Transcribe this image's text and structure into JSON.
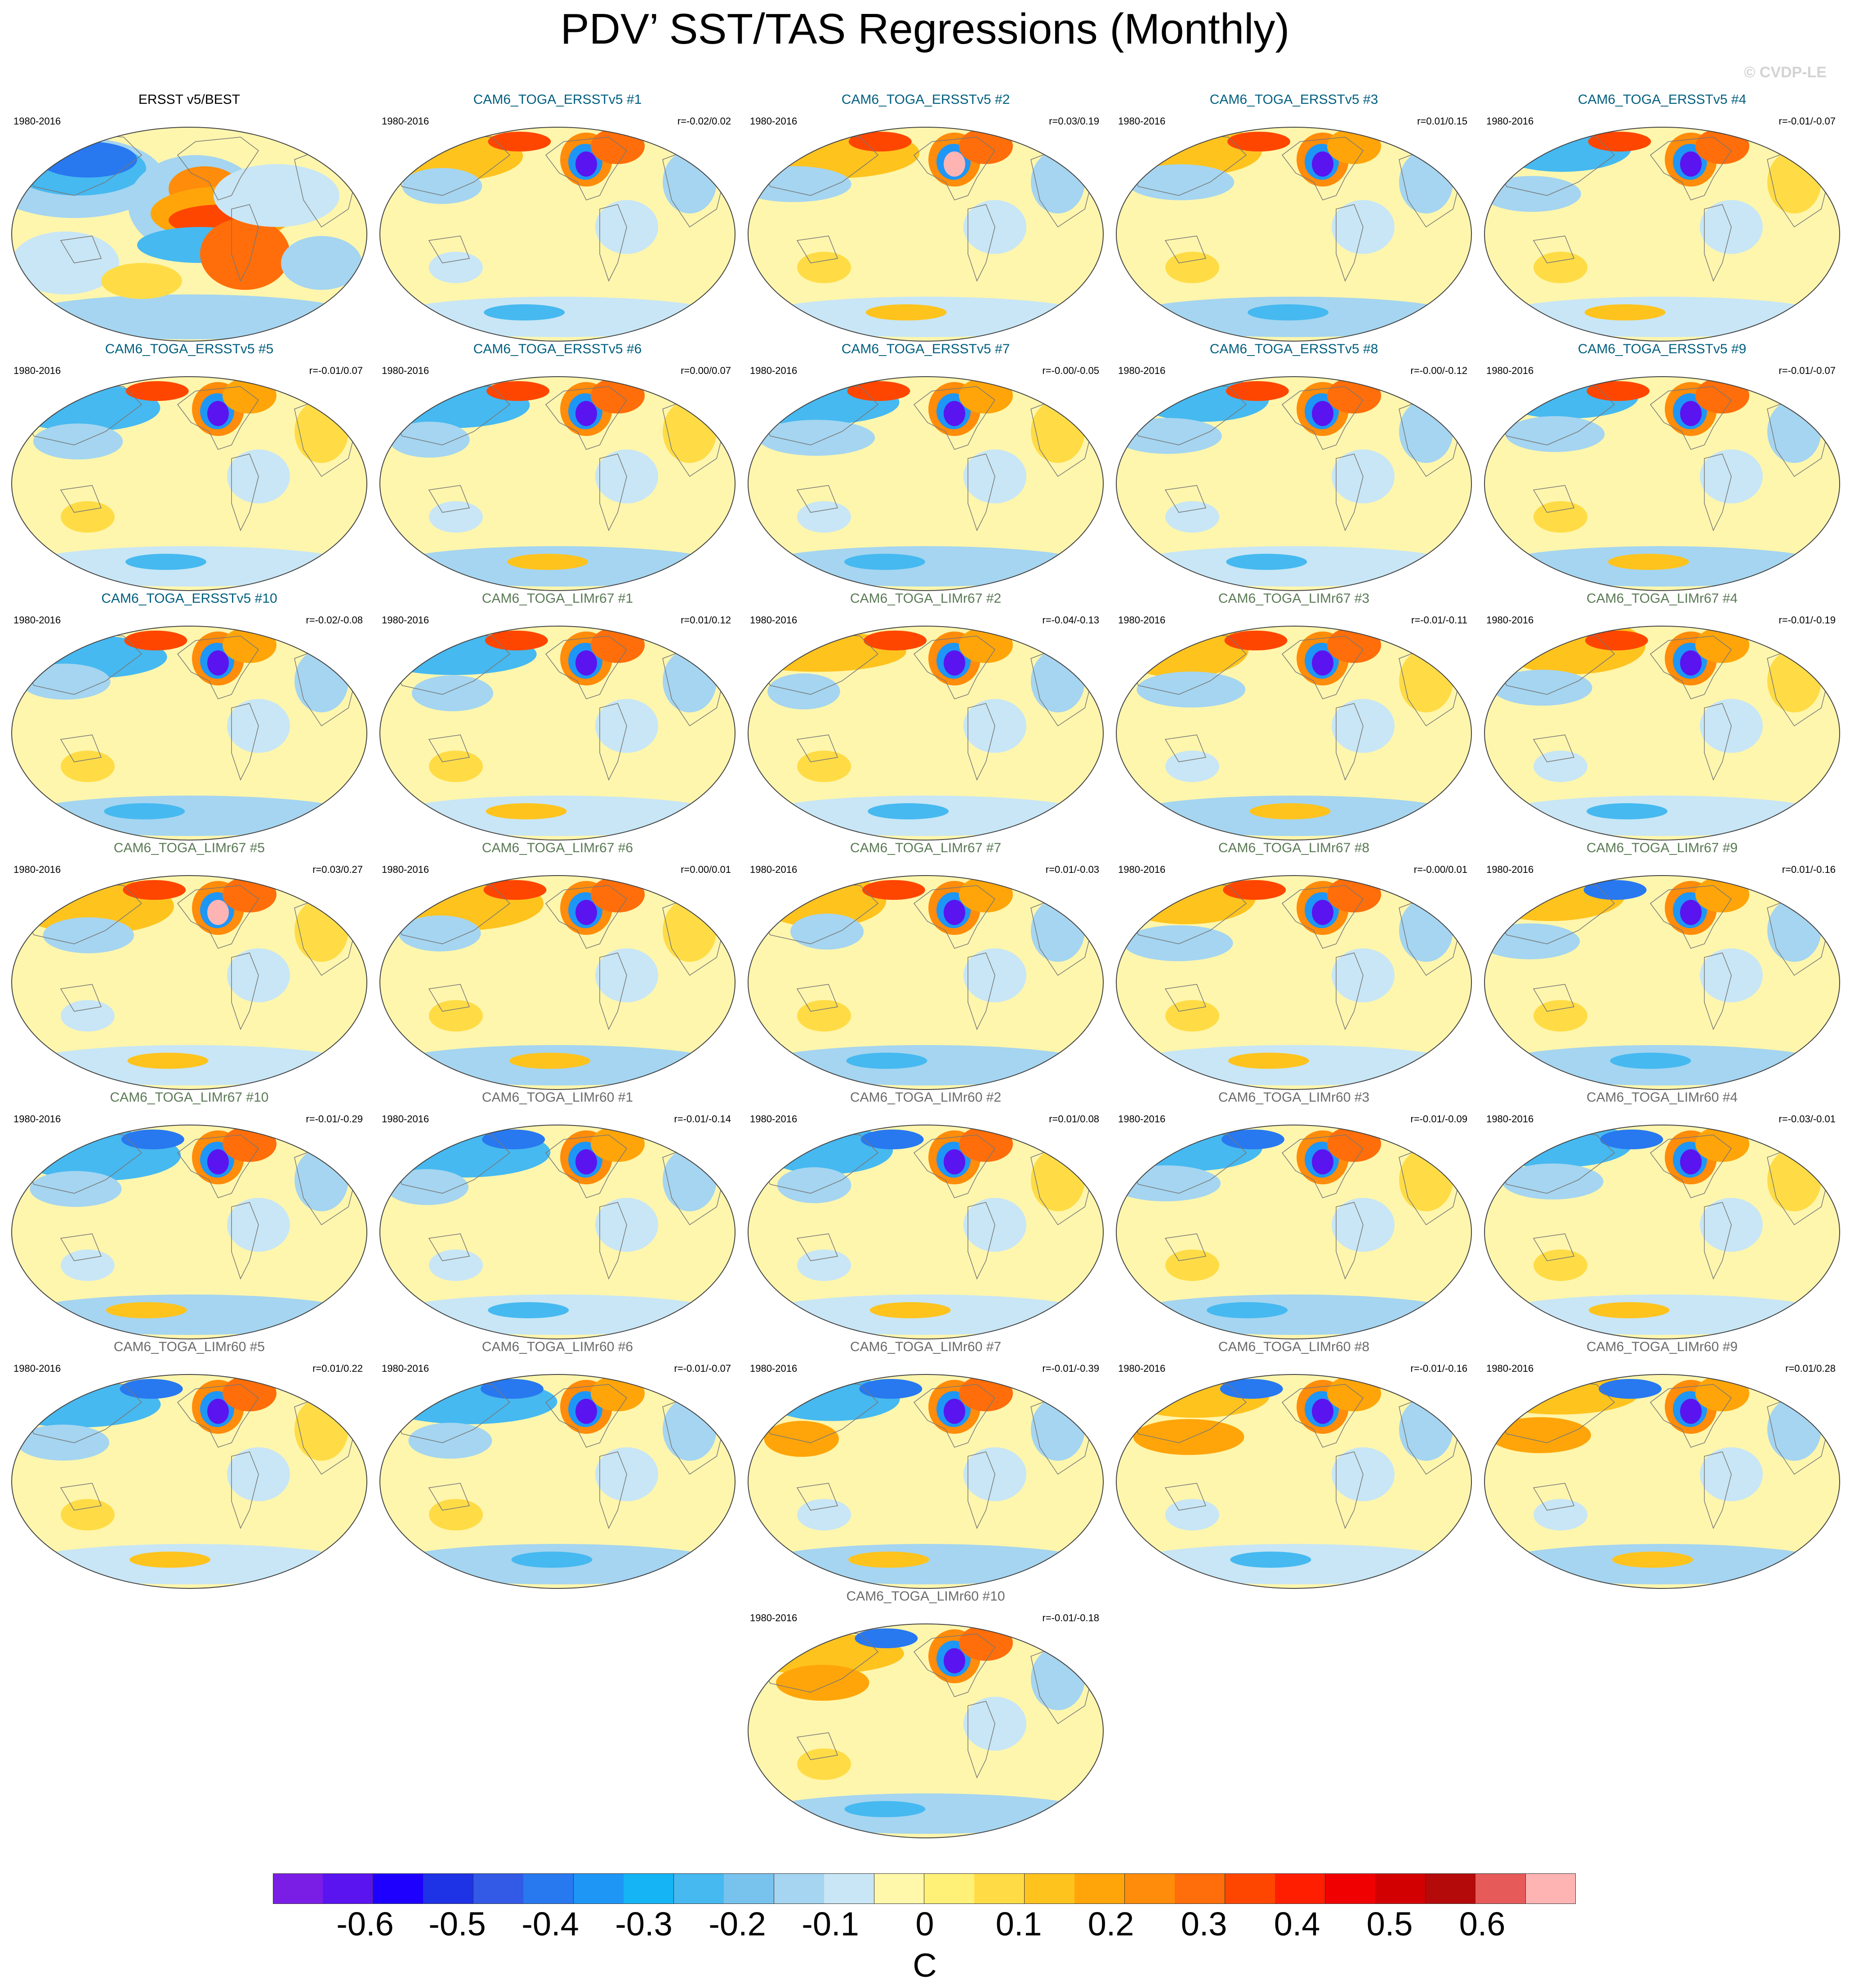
{
  "title": "PDV’ SST/TAS Regressions (Monthly)",
  "watermark": "© CVDP-LE",
  "colors": {
    "title_ersst": "#005f7f",
    "title_limr67": "#5a7a55",
    "title_limr60": "#6b6b6b",
    "ocean": "#fff6ad",
    "outline": "#777777"
  },
  "panels": [
    {
      "title": "ERSST v5/BEST",
      "period": "1980-2016",
      "corr": "",
      "group": "obs"
    },
    {
      "title": "CAM6_TOGA_ERSSTv5 #1",
      "period": "1980-2016",
      "corr": "r=-0.02/0.02",
      "group": "ersst"
    },
    {
      "title": "CAM6_TOGA_ERSSTv5 #2",
      "period": "1980-2016",
      "corr": "r=0.03/0.19",
      "group": "ersst"
    },
    {
      "title": "CAM6_TOGA_ERSSTv5 #3",
      "period": "1980-2016",
      "corr": "r=0.01/0.15",
      "group": "ersst"
    },
    {
      "title": "CAM6_TOGA_ERSSTv5 #4",
      "period": "1980-2016",
      "corr": "r=-0.01/-0.07",
      "group": "ersst"
    },
    {
      "title": "CAM6_TOGA_ERSSTv5 #5",
      "period": "1980-2016",
      "corr": "r=-0.01/0.07",
      "group": "ersst"
    },
    {
      "title": "CAM6_TOGA_ERSSTv5 #6",
      "period": "1980-2016",
      "corr": "r=0.00/0.07",
      "group": "ersst"
    },
    {
      "title": "CAM6_TOGA_ERSSTv5 #7",
      "period": "1980-2016",
      "corr": "r=-0.00/-0.05",
      "group": "ersst"
    },
    {
      "title": "CAM6_TOGA_ERSSTv5 #8",
      "period": "1980-2016",
      "corr": "r=-0.00/-0.12",
      "group": "ersst"
    },
    {
      "title": "CAM6_TOGA_ERSSTv5 #9",
      "period": "1980-2016",
      "corr": "r=-0.01/-0.07",
      "group": "ersst"
    },
    {
      "title": "CAM6_TOGA_ERSSTv5 #10",
      "period": "1980-2016",
      "corr": "r=-0.02/-0.08",
      "group": "ersst"
    },
    {
      "title": "CAM6_TOGA_LIMr67 #1",
      "period": "1980-2016",
      "corr": "r=0.01/0.12",
      "group": "limr67"
    },
    {
      "title": "CAM6_TOGA_LIMr67 #2",
      "period": "1980-2016",
      "corr": "r=-0.04/-0.13",
      "group": "limr67"
    },
    {
      "title": "CAM6_TOGA_LIMr67 #3",
      "period": "1980-2016",
      "corr": "r=-0.01/-0.11",
      "group": "limr67"
    },
    {
      "title": "CAM6_TOGA_LIMr67 #4",
      "period": "1980-2016",
      "corr": "r=-0.01/-0.19",
      "group": "limr67"
    },
    {
      "title": "CAM6_TOGA_LIMr67 #5",
      "period": "1980-2016",
      "corr": "r=0.03/0.27",
      "group": "limr67"
    },
    {
      "title": "CAM6_TOGA_LIMr67 #6",
      "period": "1980-2016",
      "corr": "r=0.00/0.01",
      "group": "limr67"
    },
    {
      "title": "CAM6_TOGA_LIMr67 #7",
      "period": "1980-2016",
      "corr": "r=0.01/-0.03",
      "group": "limr67"
    },
    {
      "title": "CAM6_TOGA_LIMr67 #8",
      "period": "1980-2016",
      "corr": "r=-0.00/0.01",
      "group": "limr67"
    },
    {
      "title": "CAM6_TOGA_LIMr67 #9",
      "period": "1980-2016",
      "corr": "r=0.01/-0.16",
      "group": "limr67"
    },
    {
      "title": "CAM6_TOGA_LIMr67 #10",
      "period": "1980-2016",
      "corr": "r=-0.01/-0.29",
      "group": "limr67"
    },
    {
      "title": "CAM6_TOGA_LIMr60 #1",
      "period": "1980-2016",
      "corr": "r=-0.01/-0.14",
      "group": "limr60"
    },
    {
      "title": "CAM6_TOGA_LIMr60 #2",
      "period": "1980-2016",
      "corr": "r=0.01/0.08",
      "group": "limr60"
    },
    {
      "title": "CAM6_TOGA_LIMr60 #3",
      "period": "1980-2016",
      "corr": "r=-0.01/-0.09",
      "group": "limr60"
    },
    {
      "title": "CAM6_TOGA_LIMr60 #4",
      "period": "1980-2016",
      "corr": "r=-0.03/-0.01",
      "group": "limr60"
    },
    {
      "title": "CAM6_TOGA_LIMr60 #5",
      "period": "1980-2016",
      "corr": "r=0.01/0.22",
      "group": "limr60"
    },
    {
      "title": "CAM6_TOGA_LIMr60 #6",
      "period": "1980-2016",
      "corr": "r=-0.01/-0.07",
      "group": "limr60"
    },
    {
      "title": "CAM6_TOGA_LIMr60 #7",
      "period": "1980-2016",
      "corr": "r=-0.01/-0.39",
      "group": "limr60"
    },
    {
      "title": "CAM6_TOGA_LIMr60 #8",
      "period": "1980-2016",
      "corr": "r=-0.01/-0.16",
      "group": "limr60"
    },
    {
      "title": "CAM6_TOGA_LIMr60 #9",
      "period": "1980-2016",
      "corr": "r=0.01/0.28",
      "group": "limr60"
    },
    {
      "title": "CAM6_TOGA_LIMr60 #10",
      "period": "1980-2016",
      "corr": "r=-0.01/-0.18",
      "group": "limr60"
    }
  ],
  "colorbar": {
    "units": "C",
    "tick_labels": [
      "-0.6",
      "-0.5",
      "-0.4",
      "-0.3",
      "-0.2",
      "-0.1",
      "0",
      "0.1",
      "0.2",
      "0.3",
      "0.4",
      "0.5",
      "0.6"
    ],
    "colors": [
      "#7a1ee6",
      "#5a14f0",
      "#1e00ff",
      "#1e32e6",
      "#325ae6",
      "#2878f0",
      "#1e96f5",
      "#14b4f5",
      "#46b9f0",
      "#78c3ee",
      "#a5d5f0",
      "#c8e6f5",
      "#fff8aa",
      "#fff078",
      "#ffdc46",
      "#ffc31e",
      "#ffa50a",
      "#ff8c0a",
      "#ff6e0a",
      "#ff4600",
      "#ff1e00",
      "#f00000",
      "#d20000",
      "#b40a0a",
      "#e65a5a",
      "#ffb4b4"
    ]
  }
}
